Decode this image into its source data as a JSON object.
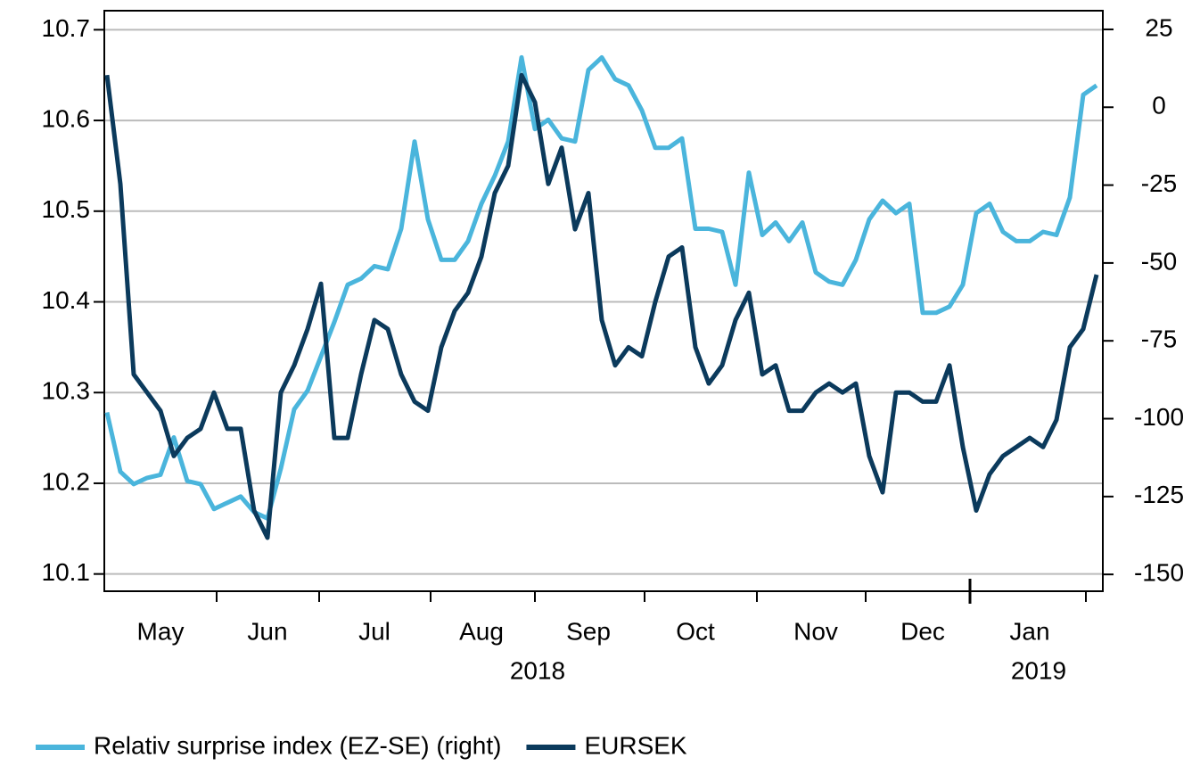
{
  "chart_data": {
    "type": "line",
    "categories": [
      null,
      null,
      null,
      null,
      "May",
      null,
      null,
      null,
      null,
      null,
      null,
      null,
      "Jun",
      null,
      null,
      null,
      null,
      null,
      null,
      null,
      "Jul",
      null,
      null,
      null,
      null,
      null,
      null,
      null,
      "Aug",
      null,
      null,
      null,
      null,
      null,
      null,
      null,
      "Sep",
      null,
      null,
      null,
      null,
      null,
      null,
      null,
      "Oct",
      null,
      null,
      null,
      null,
      null,
      null,
      null,
      null,
      "Nov",
      null,
      null,
      null,
      null,
      null,
      null,
      null,
      "Dec",
      null,
      null,
      null,
      null,
      null,
      null,
      null,
      "Jan",
      null,
      null,
      null,
      null,
      null
    ],
    "x_group_labels": [
      "2018",
      "2019"
    ],
    "series": [
      {
        "name": "Relativ surprise index (EZ-SE) (right)",
        "color": "#4ab5dc",
        "axis": "y2",
        "values": [
          -98,
          -117,
          -121,
          -119,
          -118,
          -106,
          -120,
          -121,
          -129,
          -127,
          -125,
          -130,
          -132,
          -116,
          -97,
          -91,
          -80,
          -69,
          -57,
          -55,
          -51,
          -52,
          -39,
          -11,
          -36,
          -49,
          -49,
          -43,
          -31,
          -22,
          -11,
          16,
          -7,
          -4,
          -10,
          -11,
          12,
          16,
          9,
          7,
          -1,
          -13,
          -13,
          -10,
          -39,
          -39,
          -40,
          -57,
          -21,
          -41,
          -37,
          -43,
          -37,
          -53,
          -56,
          -57,
          -49,
          -36,
          -30,
          -34,
          -31,
          -66,
          -66,
          -64,
          -57,
          -34,
          -31,
          -40,
          -43,
          -43,
          -40,
          -41,
          -29,
          4,
          7
        ]
      },
      {
        "name": "EURSEK",
        "color": "#0b3a5c",
        "values": [
          10.65,
          10.53,
          10.32,
          10.3,
          10.28,
          10.23,
          10.25,
          10.26,
          10.3,
          10.26,
          10.26,
          10.17,
          10.14,
          10.3,
          10.33,
          10.37,
          10.42,
          10.25,
          10.25,
          10.32,
          10.38,
          10.37,
          10.32,
          10.29,
          10.28,
          10.35,
          10.39,
          10.41,
          10.45,
          10.52,
          10.55,
          10.65,
          10.62,
          10.53,
          10.57,
          10.48,
          10.52,
          10.38,
          10.33,
          10.35,
          10.34,
          10.4,
          10.45,
          10.46,
          10.35,
          10.31,
          10.33,
          10.38,
          10.41,
          10.32,
          10.33,
          10.28,
          10.28,
          10.3,
          10.31,
          10.3,
          10.31,
          10.23,
          10.19,
          10.3,
          10.3,
          10.29,
          10.29,
          10.33,
          10.24,
          10.17,
          10.21,
          10.23,
          10.24,
          10.25,
          10.24,
          10.27,
          10.35,
          10.37,
          10.43
        ]
      }
    ],
    "ylim": [
      10.081,
      10.721
    ],
    "yticks": [
      {
        "value": 10.1,
        "label": "10.1"
      },
      10.2,
      10.3,
      10.4,
      10.5,
      10.6,
      10.7
    ],
    "y2lim": [
      -155.4,
      31
    ],
    "y2ticks": [
      -150,
      -125,
      -100,
      -75,
      -50,
      -25,
      0,
      25
    ],
    "grid": true,
    "legend": "bottom"
  }
}
